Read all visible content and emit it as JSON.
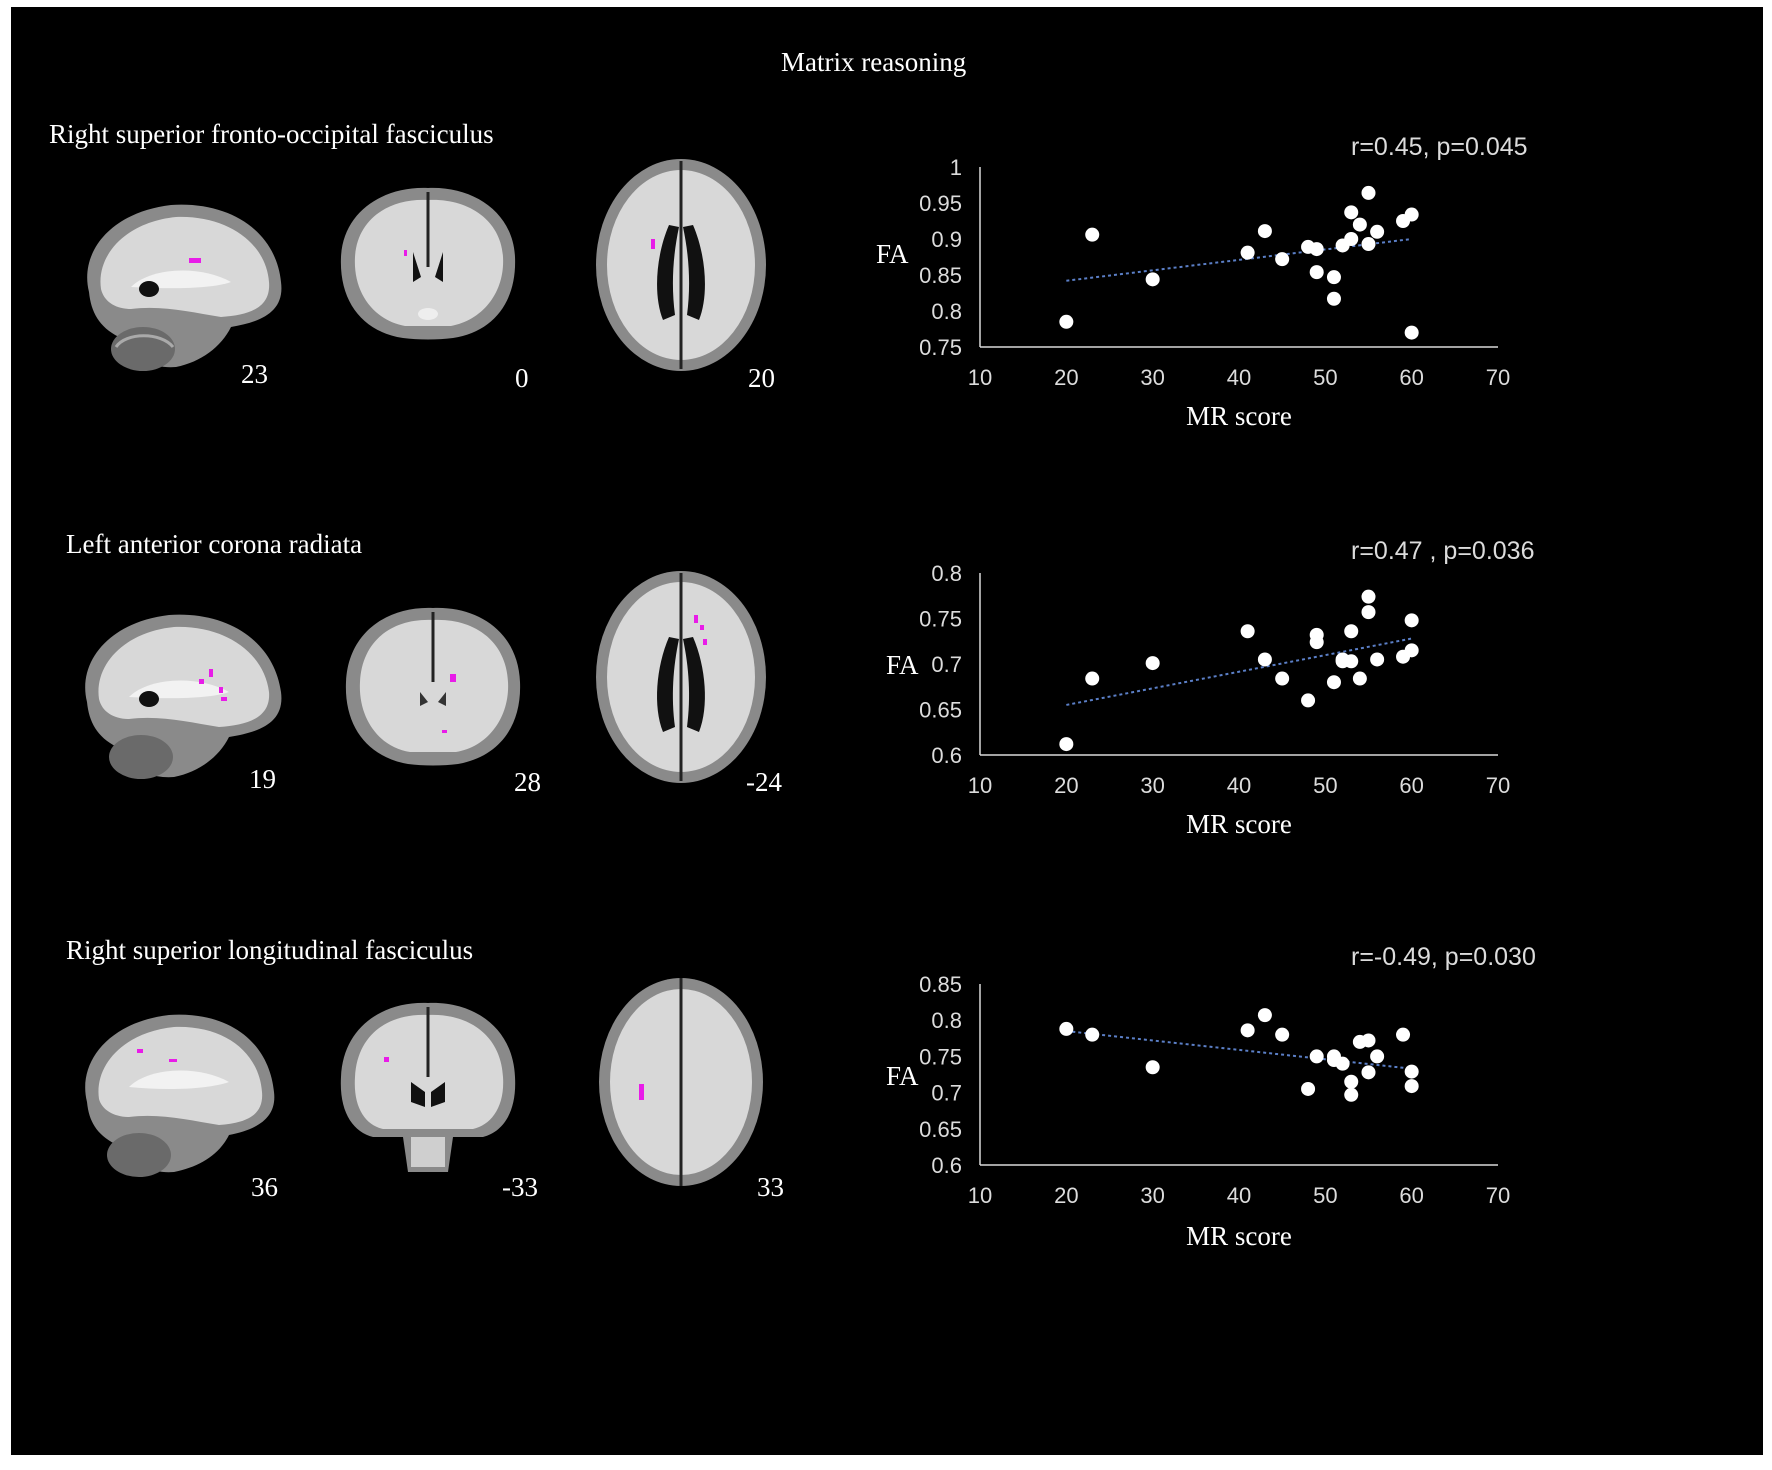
{
  "figure": {
    "title": "Matrix reasoning",
    "rows": [
      {
        "region": "Right superior fronto-occipital fasciculus",
        "slices": [
          "23",
          "0",
          "20"
        ],
        "stat": "r=0.45, p=0.045"
      },
      {
        "region": "Left anterior corona radiata",
        "slices": [
          "19",
          "28",
          "-24"
        ],
        "stat": "r=0.47 , p=0.036"
      },
      {
        "region": "Right superior longitudinal fasciculus",
        "slices": [
          "36",
          "-33",
          "33"
        ],
        "stat": "r=-0.49, p=0.030"
      }
    ]
  },
  "colors": {
    "background": "#000000",
    "text": "#ffffff",
    "trendline": "#5b7fc7",
    "highlight": "#e81ce8",
    "brain_white": "#e6e6e6",
    "brain_gray": "#7d7d7d"
  },
  "chart_data": [
    {
      "type": "scatter",
      "title": "",
      "xlabel": "MR score",
      "ylabel": "FA",
      "xlim": [
        10,
        70
      ],
      "ylim": [
        0.75,
        1
      ],
      "xticks": [
        "10",
        "20",
        "30",
        "40",
        "50",
        "60",
        "70"
      ],
      "yticks": [
        "0.75",
        "0.8",
        "0.85",
        "0.9",
        "0.95",
        "1"
      ],
      "annotation": "r=0.45, p=0.045",
      "grid": false,
      "trendline": {
        "style": "dotted",
        "x": [
          20,
          60
        ],
        "y": [
          0.842,
          0.9
        ]
      },
      "points": [
        {
          "x": 20,
          "y": 0.785
        },
        {
          "x": 23,
          "y": 0.906
        },
        {
          "x": 30,
          "y": 0.844
        },
        {
          "x": 41,
          "y": 0.881
        },
        {
          "x": 43,
          "y": 0.911
        },
        {
          "x": 45,
          "y": 0.872
        },
        {
          "x": 48,
          "y": 0.889
        },
        {
          "x": 49,
          "y": 0.886
        },
        {
          "x": 49,
          "y": 0.854
        },
        {
          "x": 51,
          "y": 0.847
        },
        {
          "x": 51,
          "y": 0.817
        },
        {
          "x": 52,
          "y": 0.891
        },
        {
          "x": 53,
          "y": 0.9
        },
        {
          "x": 53,
          "y": 0.937
        },
        {
          "x": 54,
          "y": 0.92
        },
        {
          "x": 55,
          "y": 0.964
        },
        {
          "x": 55,
          "y": 0.893
        },
        {
          "x": 56,
          "y": 0.91
        },
        {
          "x": 59,
          "y": 0.925
        },
        {
          "x": 60,
          "y": 0.934
        },
        {
          "x": 60,
          "y": 0.77
        }
      ]
    },
    {
      "type": "scatter",
      "title": "",
      "xlabel": "MR score",
      "ylabel": "FA",
      "xlim": [
        10,
        70
      ],
      "ylim": [
        0.6,
        0.8
      ],
      "xticks": [
        "10",
        "20",
        "30",
        "40",
        "50",
        "60",
        "70"
      ],
      "yticks": [
        "0.6",
        "0.65",
        "0.7",
        "0.75",
        "0.8"
      ],
      "annotation": "r=0.47 , p=0.036",
      "grid": false,
      "trendline": {
        "style": "dotted",
        "x": [
          20,
          60
        ],
        "y": [
          0.655,
          0.728
        ]
      },
      "points": [
        {
          "x": 20,
          "y": 0.612
        },
        {
          "x": 23,
          "y": 0.684
        },
        {
          "x": 30,
          "y": 0.701
        },
        {
          "x": 41,
          "y": 0.736
        },
        {
          "x": 43,
          "y": 0.705
        },
        {
          "x": 45,
          "y": 0.684
        },
        {
          "x": 48,
          "y": 0.66
        },
        {
          "x": 49,
          "y": 0.732
        },
        {
          "x": 49,
          "y": 0.724
        },
        {
          "x": 51,
          "y": 0.68
        },
        {
          "x": 52,
          "y": 0.705
        },
        {
          "x": 52,
          "y": 0.703
        },
        {
          "x": 53,
          "y": 0.736
        },
        {
          "x": 53,
          "y": 0.703
        },
        {
          "x": 54,
          "y": 0.684
        },
        {
          "x": 55,
          "y": 0.774
        },
        {
          "x": 55,
          "y": 0.757
        },
        {
          "x": 56,
          "y": 0.705
        },
        {
          "x": 59,
          "y": 0.708
        },
        {
          "x": 60,
          "y": 0.748
        },
        {
          "x": 60,
          "y": 0.715
        }
      ]
    },
    {
      "type": "scatter",
      "title": "",
      "xlabel": "MR score",
      "ylabel": "FA",
      "xlim": [
        10,
        70
      ],
      "ylim": [
        0.6,
        0.85
      ],
      "xticks": [
        "10",
        "20",
        "30",
        "40",
        "50",
        "60",
        "70"
      ],
      "yticks": [
        "0.6",
        "0.65",
        "0.7",
        "0.75",
        "0.8",
        "0.85"
      ],
      "annotation": "r=-0.49, p=0.030",
      "grid": false,
      "trendline": {
        "style": "dotted",
        "x": [
          20,
          60
        ],
        "y": [
          0.785,
          0.733
        ]
      },
      "points": [
        {
          "x": 20,
          "y": 0.788
        },
        {
          "x": 23,
          "y": 0.78
        },
        {
          "x": 30,
          "y": 0.735
        },
        {
          "x": 41,
          "y": 0.786
        },
        {
          "x": 43,
          "y": 0.807
        },
        {
          "x": 45,
          "y": 0.78
        },
        {
          "x": 48,
          "y": 0.705
        },
        {
          "x": 49,
          "y": 0.75
        },
        {
          "x": 51,
          "y": 0.75
        },
        {
          "x": 51,
          "y": 0.745
        },
        {
          "x": 52,
          "y": 0.74
        },
        {
          "x": 53,
          "y": 0.715
        },
        {
          "x": 53,
          "y": 0.697
        },
        {
          "x": 54,
          "y": 0.77
        },
        {
          "x": 55,
          "y": 0.772
        },
        {
          "x": 55,
          "y": 0.728
        },
        {
          "x": 56,
          "y": 0.75
        },
        {
          "x": 59,
          "y": 0.78
        },
        {
          "x": 60,
          "y": 0.729
        },
        {
          "x": 60,
          "y": 0.709
        }
      ]
    }
  ]
}
